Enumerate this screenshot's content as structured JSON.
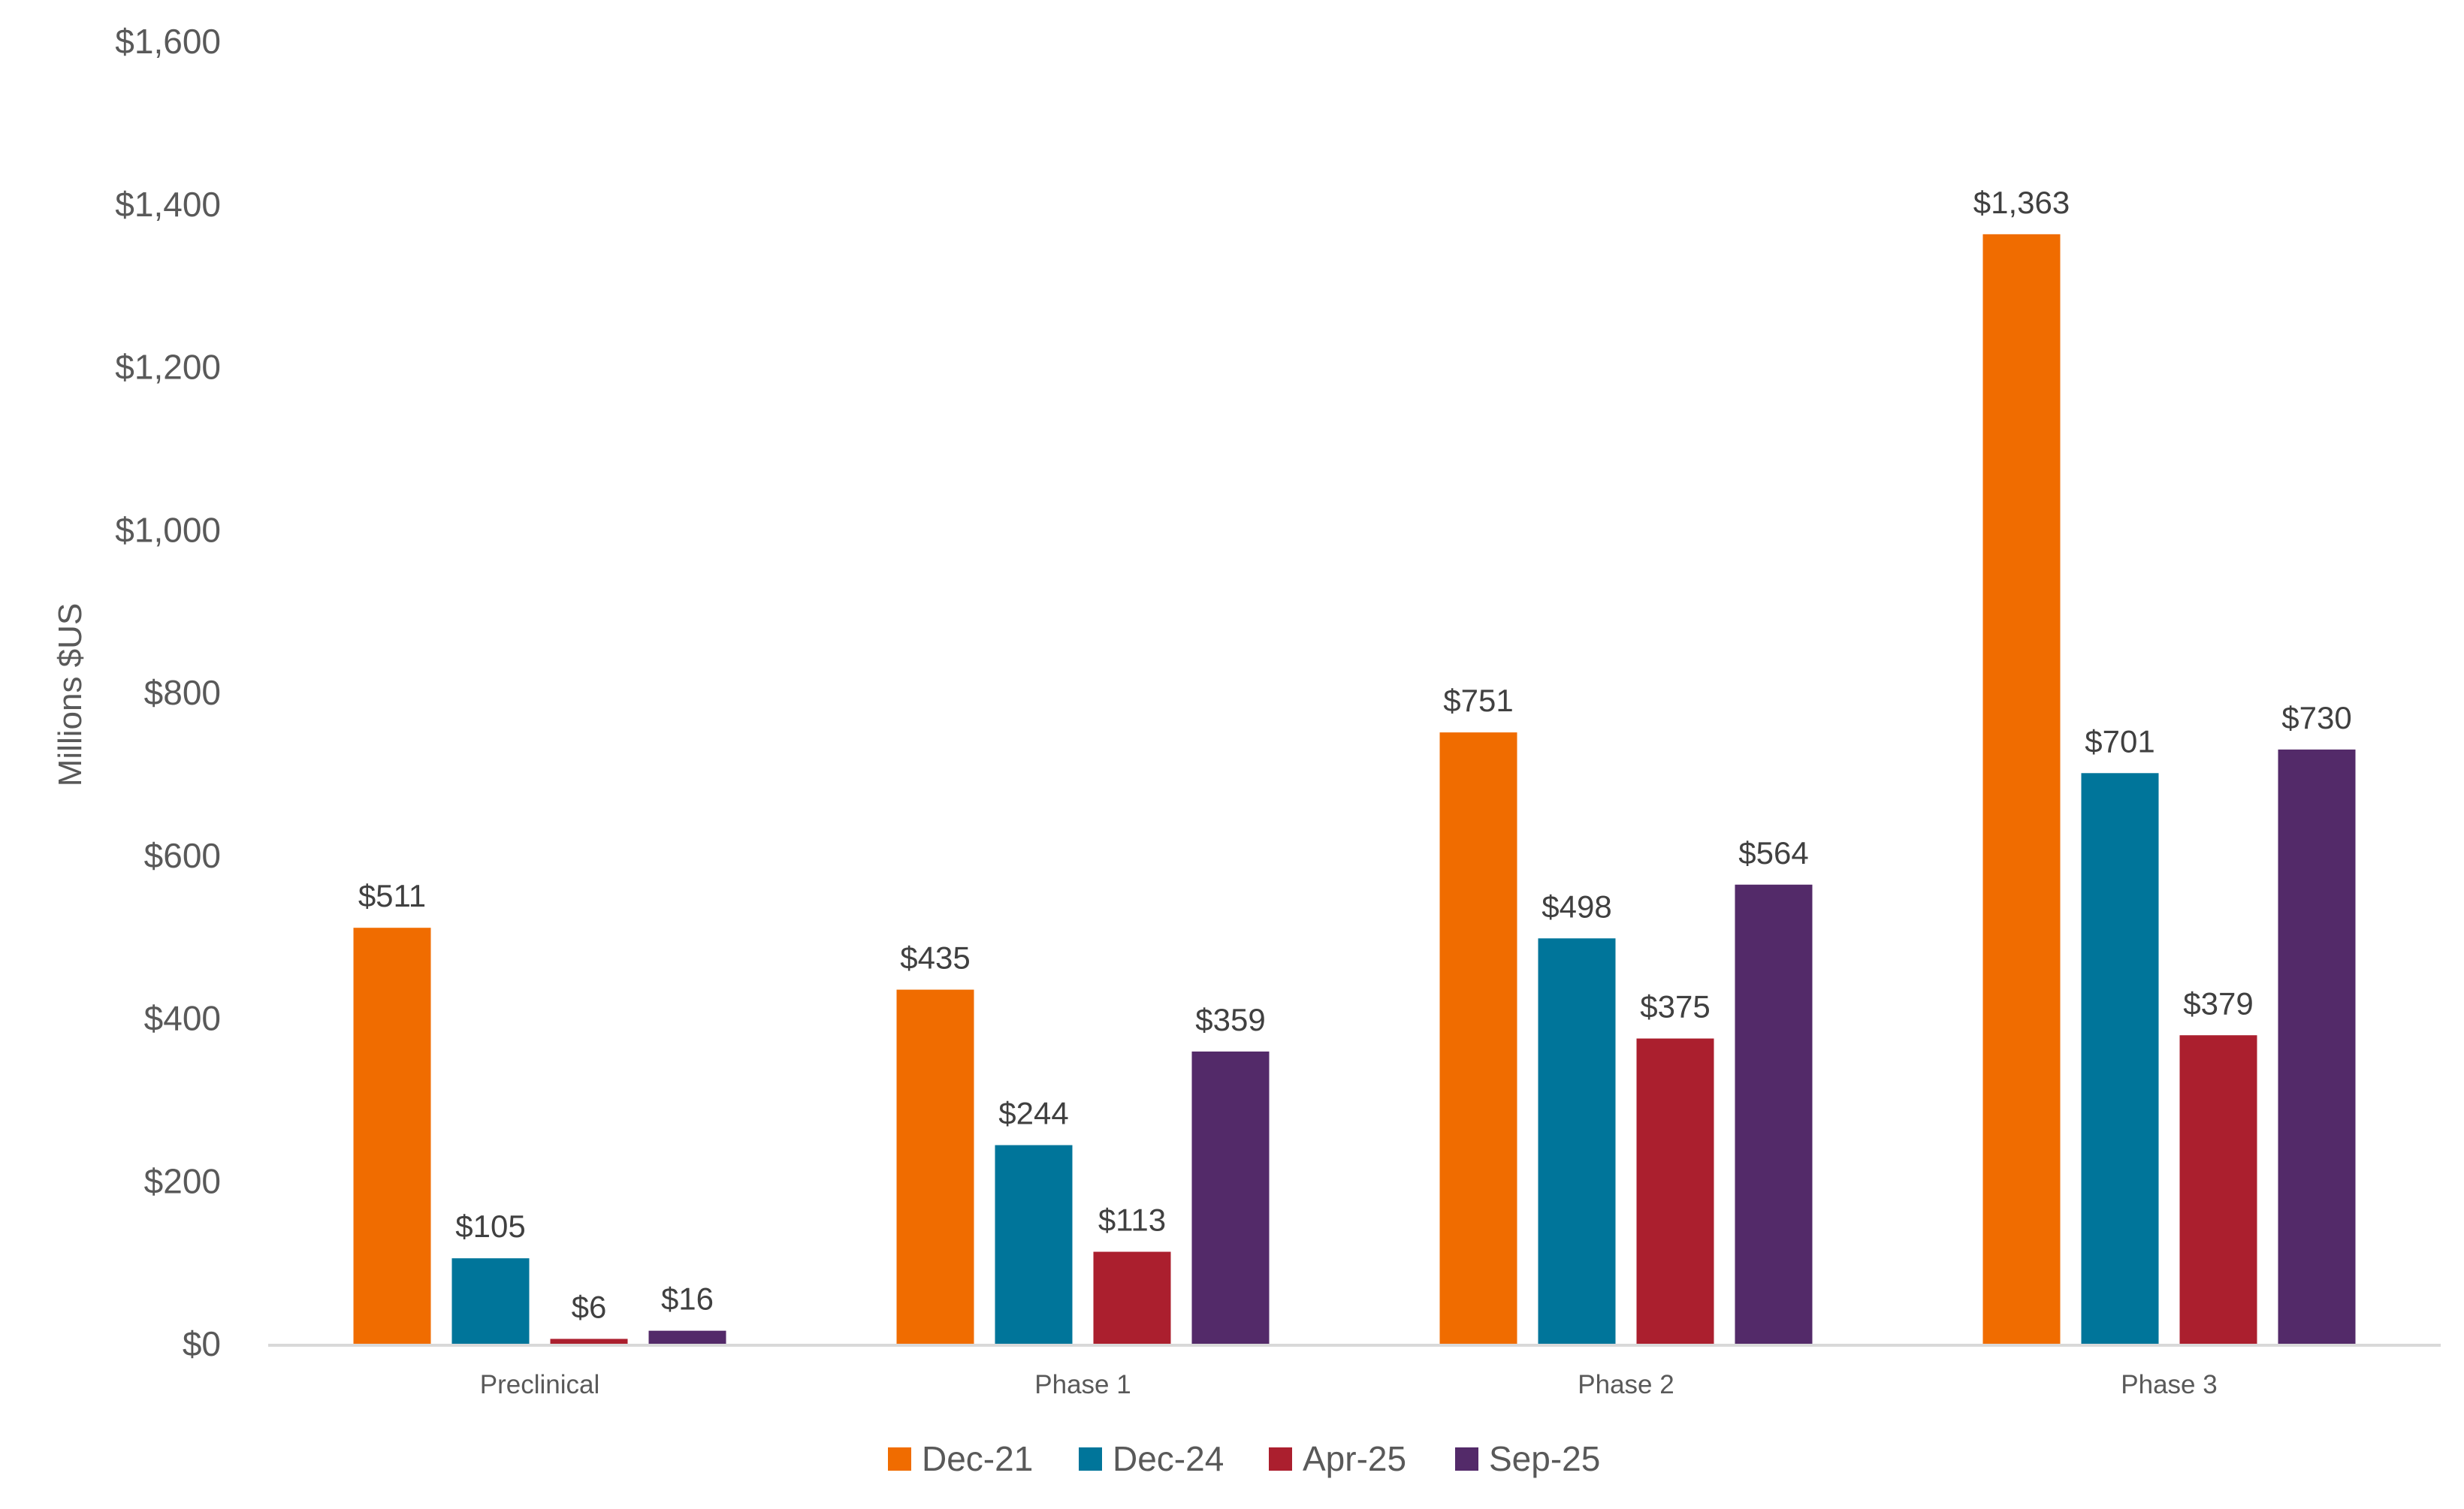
{
  "chart_data": {
    "type": "bar",
    "title": "",
    "xlabel": "",
    "ylabel": "Millions $US",
    "ylim": [
      0,
      1600
    ],
    "yticks": [
      0,
      200,
      400,
      600,
      800,
      1000,
      1200,
      1400,
      1600
    ],
    "ytick_labels": [
      "$0",
      "$200",
      "$400",
      "$600",
      "$800",
      "$1,000",
      "$1,200",
      "$1,400",
      "$1,600"
    ],
    "grid": false,
    "legend_position": "bottom",
    "categories": [
      "Preclinical",
      "Phase 1",
      "Phase 2",
      "Phase 3"
    ],
    "series": [
      {
        "name": "Dec-21",
        "color": "#F06C00",
        "values": [
          511,
          435,
          751,
          1363
        ],
        "labels": [
          "$511",
          "$435",
          "$751",
          "$1,363"
        ]
      },
      {
        "name": "Dec-24",
        "color": "#00759A",
        "values": [
          105,
          244,
          498,
          701
        ],
        "labels": [
          "$105",
          "$244",
          "$498",
          "$701"
        ]
      },
      {
        "name": "Apr-25",
        "color": "#AB1F2E",
        "values": [
          6,
          113,
          375,
          379
        ],
        "labels": [
          "$6",
          "$113",
          "$375",
          "$379"
        ]
      },
      {
        "name": "Sep-25",
        "color": "#532A69",
        "values": [
          16,
          359,
          564,
          730
        ],
        "labels": [
          "$16",
          "$359",
          "$564",
          "$730"
        ]
      }
    ]
  }
}
